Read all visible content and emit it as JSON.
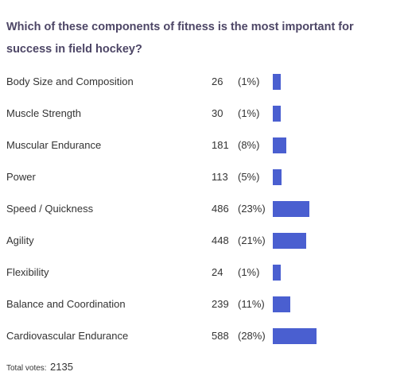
{
  "poll": {
    "question": "Which of these components of fitness is the most important for success in field hockey?",
    "bar_color": "#4a5fd0",
    "options": [
      {
        "label": "Body Size and Composition",
        "votes": "26",
        "percent": "(1%)",
        "share": 1.2
      },
      {
        "label": "Muscle Strength",
        "votes": "30",
        "percent": "(1%)",
        "share": 1.4
      },
      {
        "label": "Muscular Endurance",
        "votes": "181",
        "percent": "(8%)",
        "share": 8.5
      },
      {
        "label": "Power",
        "votes": "113",
        "percent": "(5%)",
        "share": 5.3
      },
      {
        "label": "Speed / Quickness",
        "votes": "486",
        "percent": "(23%)",
        "share": 22.8
      },
      {
        "label": "Agility",
        "votes": "448",
        "percent": "(21%)",
        "share": 21.0
      },
      {
        "label": "Flexibility",
        "votes": "24",
        "percent": "(1%)",
        "share": 1.1
      },
      {
        "label": "Balance and Coordination",
        "votes": "239",
        "percent": "(11%)",
        "share": 11.2
      },
      {
        "label": "Cardiovascular Endurance",
        "votes": "588",
        "percent": "(28%)",
        "share": 27.5
      }
    ],
    "total_label": "Total votes:",
    "total_value": "2135"
  }
}
